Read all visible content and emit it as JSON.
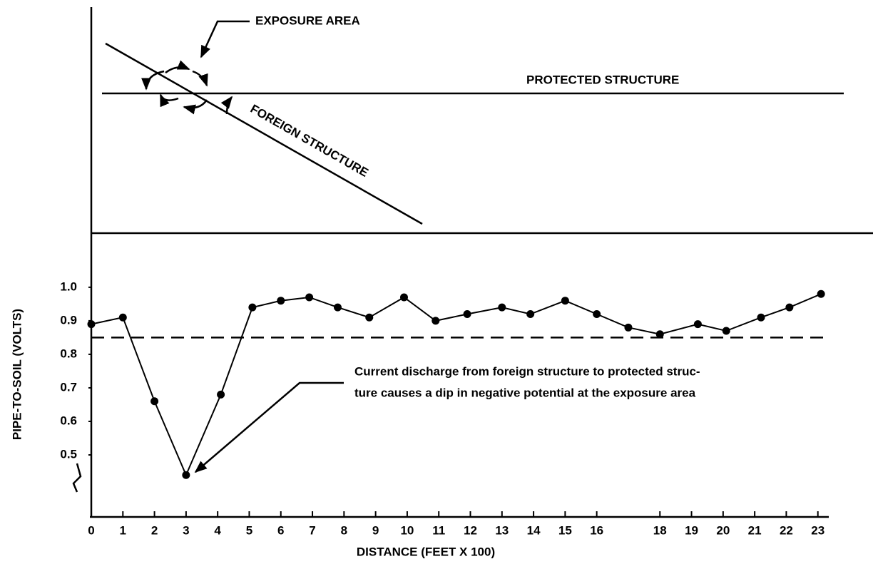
{
  "chart_data": {
    "type": "line",
    "diagram": {
      "exposure_label": "EXPOSURE AREA",
      "protected_label": "PROTECTED STRUCTURE",
      "foreign_label": "FOREIGN STRUCTURE"
    },
    "x_label": "DISTANCE (FEET X 100)",
    "y_label": "PIPE-TO-SOIL (VOLTS)",
    "annotation": [
      "Current discharge from foreign structure to protected struc-",
      "ture causes a dip in negative potential at the exposure area"
    ],
    "x": [
      0,
      1,
      2,
      3,
      4.1,
      5.1,
      6,
      6.9,
      7.8,
      8.8,
      9.9,
      10.9,
      11.9,
      13,
      13.9,
      15,
      16,
      17,
      18,
      19.2,
      20.1,
      21.2,
      22.1,
      23.1
    ],
    "values": [
      0.89,
      0.91,
      0.66,
      0.44,
      0.68,
      0.94,
      0.96,
      0.97,
      0.94,
      0.91,
      0.97,
      0.9,
      0.92,
      0.94,
      0.92,
      0.96,
      0.92,
      0.88,
      0.86,
      0.89,
      0.87,
      0.91,
      0.94,
      0.98
    ],
    "color": "#000000",
    "threshold": 0.85,
    "xlim": [
      0,
      23.3
    ],
    "ylim": [
      0.315,
      1.155
    ],
    "xticks": [
      0,
      1,
      2,
      3,
      4,
      5,
      6,
      7,
      8,
      9,
      10,
      11,
      12,
      13,
      14,
      15,
      16,
      18,
      19,
      20,
      21,
      22,
      23
    ],
    "yticks": [
      {
        "value": 1,
        "label": "1.0"
      },
      0.9,
      0.8,
      0.7,
      0.6,
      0.5
    ]
  }
}
